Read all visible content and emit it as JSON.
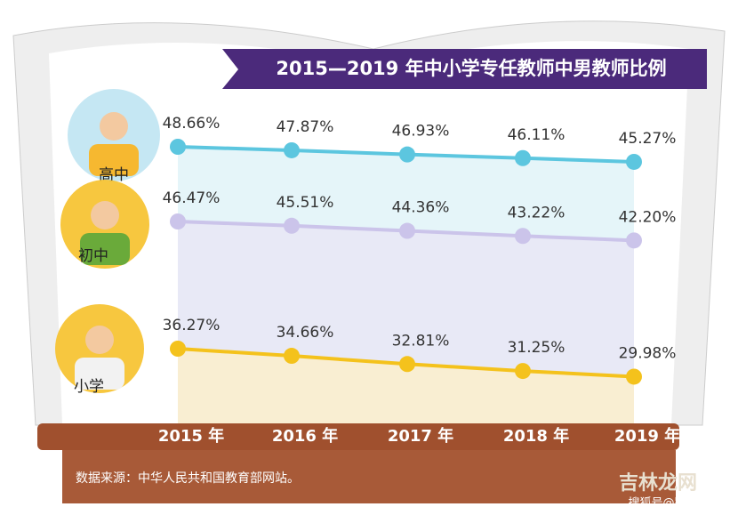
{
  "chart_data": {
    "type": "line",
    "title": "2015—2019 年中小学专任教师中男教师比例",
    "categories": [
      "2015 年",
      "2016 年",
      "2017 年",
      "2018 年",
      "2019 年"
    ],
    "series": [
      {
        "name": "高中",
        "color": "#5cc6df",
        "values": [
          48.66,
          47.87,
          46.93,
          46.11,
          45.27
        ],
        "value_labels": [
          "48.66%",
          "47.87%",
          "46.93%",
          "46.11%",
          "45.27%"
        ]
      },
      {
        "name": "初中",
        "color": "#cbc4ea",
        "values": [
          46.47,
          45.51,
          44.36,
          43.22,
          42.2
        ],
        "value_labels": [
          "46.47%",
          "45.51%",
          "44.36%",
          "43.22%",
          "42.20%"
        ]
      },
      {
        "name": "小学",
        "color": "#f4c21c",
        "values": [
          36.27,
          34.66,
          32.81,
          31.25,
          29.98
        ],
        "value_labels": [
          "36.27%",
          "34.66%",
          "32.81%",
          "31.25%",
          "29.98%"
        ]
      }
    ],
    "source": "数据来源：中华人民共和国教育部网站。"
  },
  "watermark": [
    "吉林龙网",
    "搜狐号@路道原"
  ]
}
